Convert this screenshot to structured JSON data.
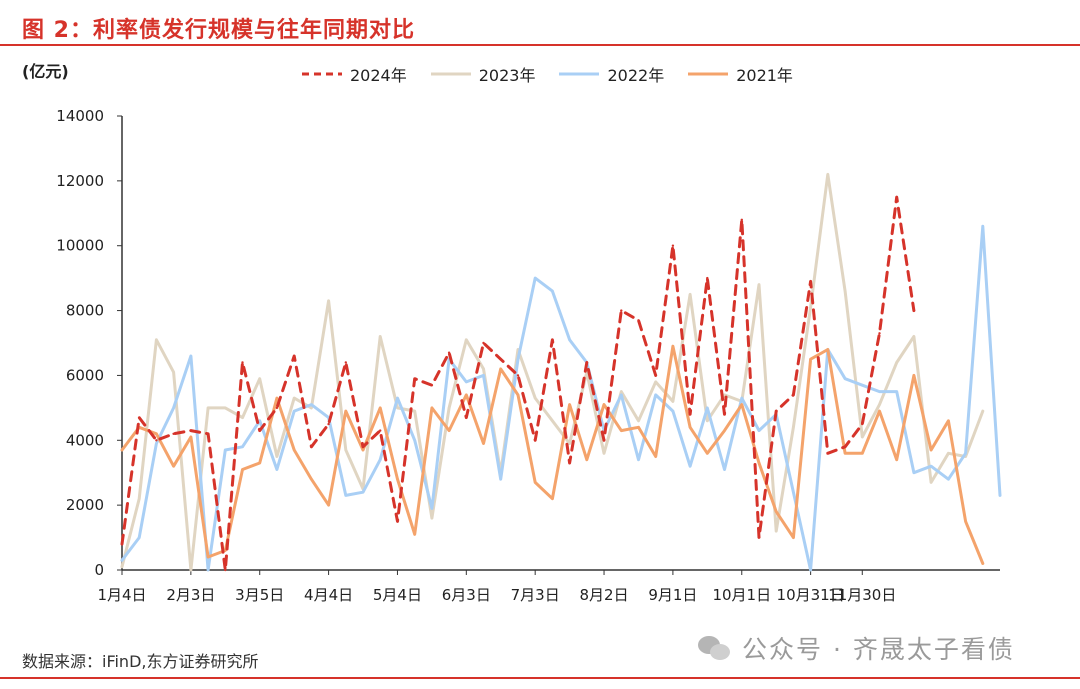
{
  "figure": {
    "title": "图 2：利率债发行规模与往年同期对比",
    "unit": "(亿元)",
    "source": "数据来源：iFinD,东方证券研究所",
    "watermark": "公众号 · 齐晟太子看债",
    "watermark_icon": "wechat-icon"
  },
  "chart_data": {
    "type": "line",
    "title": "",
    "xlabel": "",
    "ylabel": "(亿元)",
    "ylim": [
      0,
      14000
    ],
    "yticks": [
      0,
      2000,
      4000,
      6000,
      8000,
      10000,
      12000,
      14000
    ],
    "ytick_labels": [
      "0",
      "2000",
      "4000",
      "6000",
      "8000",
      "10000",
      "12000",
      "14000"
    ],
    "x_count": 52,
    "x_ticks": [
      {
        "i": 0,
        "label": "1月4日"
      },
      {
        "i": 4,
        "label": "2月3日"
      },
      {
        "i": 8,
        "label": "3月5日"
      },
      {
        "i": 12,
        "label": "4月4日"
      },
      {
        "i": 16,
        "label": "5月4日"
      },
      {
        "i": 20,
        "label": "6月3日"
      },
      {
        "i": 24,
        "label": "7月3日"
      },
      {
        "i": 28,
        "label": "8月2日"
      },
      {
        "i": 32,
        "label": "9月1日"
      },
      {
        "i": 36,
        "label": "10月1日"
      },
      {
        "i": 40,
        "label": "10月31日"
      },
      {
        "i": 43,
        "label": "11月30日"
      }
    ],
    "grid": false,
    "legend_position": "top-center",
    "series": [
      {
        "name": "2024年",
        "color": "#d6332a",
        "dash": true,
        "start": 0,
        "values": [
          800,
          4700,
          4000,
          4200,
          4300,
          4200,
          0,
          6400,
          4300,
          5000,
          6600,
          3800,
          4500,
          6400,
          3800,
          4300,
          1500,
          5900,
          5700,
          6700,
          4700,
          7000,
          6500,
          6000,
          4000,
          7100,
          3300,
          6400,
          4000,
          8000,
          7700,
          6000,
          10000,
          4800,
          9000,
          4800,
          10800,
          1000,
          4900,
          5400,
          8900,
          3600,
          3800,
          4500,
          7300,
          11500,
          8000
        ]
      },
      {
        "name": "2023年",
        "color": "#e0d5c2",
        "dash": false,
        "start": 0,
        "values": [
          100,
          2200,
          7100,
          6100,
          0,
          5000,
          5000,
          4700,
          5900,
          3500,
          5300,
          5000,
          8300,
          3700,
          2500,
          7200,
          5000,
          4900,
          1600,
          5000,
          7100,
          6200,
          3000,
          6800,
          5300,
          4600,
          3900,
          6100,
          3600,
          5500,
          4600,
          5800,
          5200,
          8500,
          4600,
          5400,
          5200,
          8800,
          1200,
          4400,
          8100,
          12200,
          8600,
          4100,
          5100,
          6400,
          7200,
          2700,
          3600,
          3500,
          4900
        ]
      },
      {
        "name": "2022年",
        "color": "#a9cff5",
        "dash": false,
        "start": 0,
        "values": [
          300,
          1000,
          3900,
          5000,
          6600,
          0,
          3700,
          3800,
          4600,
          3100,
          4900,
          5100,
          4700,
          2300,
          2400,
          3400,
          5300,
          4000,
          1900,
          6500,
          5800,
          6000,
          2800,
          6500,
          9000,
          8600,
          7100,
          6400,
          4300,
          5400,
          3400,
          5400,
          4900,
          3200,
          5000,
          3100,
          5300,
          4300,
          4800,
          2400,
          0,
          6800,
          5900,
          5700,
          5500,
          5500,
          3000,
          3200,
          2800,
          3600,
          10600,
          2300
        ]
      },
      {
        "name": "2021年",
        "color": "#f4a36b",
        "dash": false,
        "start": 0,
        "values": [
          3700,
          4400,
          4200,
          3200,
          4100,
          400,
          600,
          3100,
          3300,
          5300,
          3700,
          2800,
          2000,
          4900,
          3700,
          5000,
          2800,
          1100,
          5000,
          4300,
          5400,
          3900,
          6200,
          5400,
          2700,
          2200,
          5100,
          3400,
          5100,
          4300,
          4400,
          3500,
          6900,
          4400,
          3600,
          4300,
          5100,
          3300,
          1800,
          1000,
          6500,
          6800,
          3600,
          3600,
          4900,
          3400,
          6000,
          3700,
          4600,
          1500,
          200
        ]
      }
    ]
  }
}
